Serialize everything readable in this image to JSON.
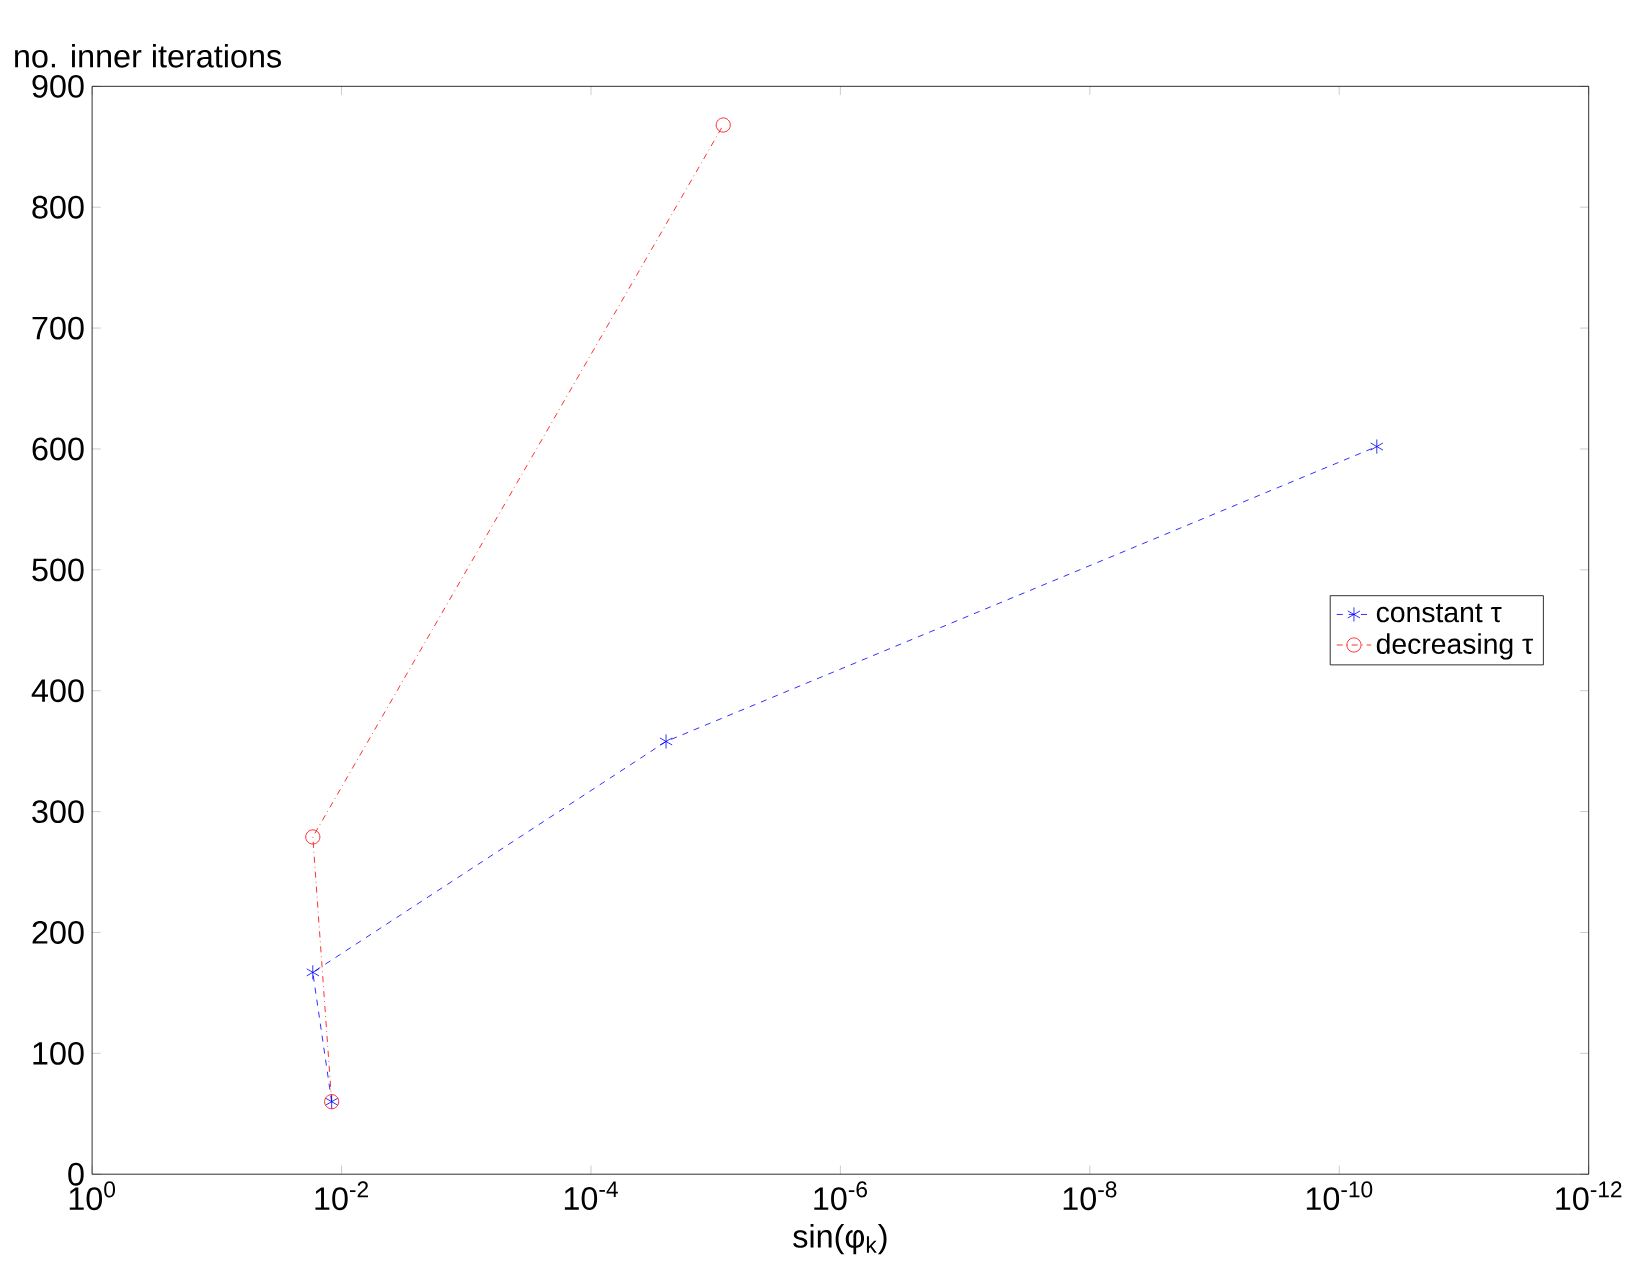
{
  "chart_data": {
    "type": "line",
    "xlabel": "sin(φ$_{k}$)",
    "ylabel": "no. inner iterations",
    "log": "x",
    "xlim": [
      1,
      1e-12
    ],
    "xticks": [
      {
        "value": 1,
        "label": "10$^{0}$"
      },
      {
        "value": 0.01,
        "label": "10$^{-2}$"
      },
      {
        "value": 0.0001,
        "label": "10$^{-4}$"
      },
      {
        "value": 1e-06,
        "label": "10$^{-6}$"
      },
      {
        "value": 1e-08,
        "label": "10$^{-8}$"
      },
      {
        "value": 1e-10,
        "label": "10$^{-10}$"
      },
      {
        "value": 1e-12,
        "label": "10$^{-12}$"
      }
    ],
    "ylim": [
      0,
      900
    ],
    "yticks": [
      0,
      100,
      200,
      300,
      400,
      500,
      600,
      700,
      800,
      900
    ],
    "grid": false,
    "legend": "right",
    "series": [
      {
        "name": "constant τ",
        "color": "#0000ff",
        "marker": "cross",
        "line_style": "dashed",
        "x": [
          0.012,
          0.017,
          2.5e-05,
          5e-11
        ],
        "values": [
          60,
          167,
          358,
          602
        ]
      },
      {
        "name": "decreasing τ",
        "color": "#ff0000",
        "marker": "circle",
        "line_style": "dashdot",
        "x": [
          0.012,
          0.017,
          8.7e-06
        ],
        "values": [
          60,
          279,
          868
        ]
      }
    ]
  }
}
